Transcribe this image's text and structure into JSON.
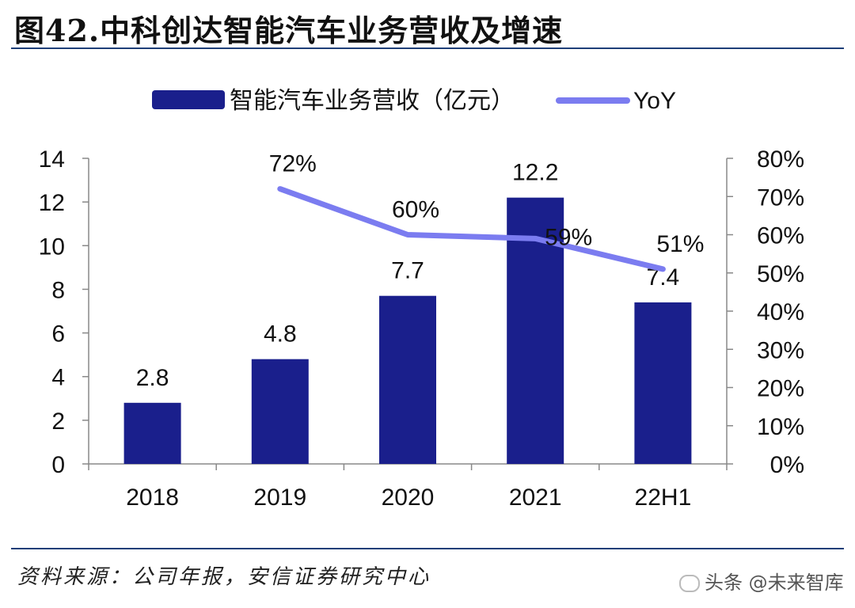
{
  "figure": {
    "title": "图42.中科创达智能汽车业务营收及增速",
    "source": "资料来源：公司年报，安信证券研究中心",
    "watermark": "头条 @未来智库"
  },
  "colors": {
    "bar": "#1a1f8c",
    "line": "#7b7cf0",
    "rule": "#1f3f78",
    "axis": "#888888"
  },
  "chart_data": {
    "type": "bar+line",
    "categories": [
      "2018",
      "2019",
      "2020",
      "2021",
      "22H1"
    ],
    "series": [
      {
        "name": "智能汽车业务营收（亿元）",
        "type": "bar",
        "axis": "left",
        "values": [
          2.8,
          4.8,
          7.7,
          12.2,
          7.4
        ],
        "labels": [
          "2.8",
          "4.8",
          "7.7",
          "12.2",
          "7.4"
        ]
      },
      {
        "name": "YoY",
        "type": "line",
        "axis": "right",
        "values": [
          null,
          72,
          60,
          59,
          51
        ],
        "labels": [
          "",
          "72%",
          "60%",
          "59%",
          "51%"
        ]
      }
    ],
    "y_left": {
      "min": 0,
      "max": 14,
      "ticks": [
        "0",
        "2",
        "4",
        "6",
        "8",
        "10",
        "12",
        "14"
      ]
    },
    "y_right": {
      "min": 0,
      "max": 80,
      "ticks": [
        "0%",
        "10%",
        "20%",
        "30%",
        "40%",
        "50%",
        "60%",
        "70%",
        "80%"
      ]
    },
    "legend_position": "top"
  }
}
